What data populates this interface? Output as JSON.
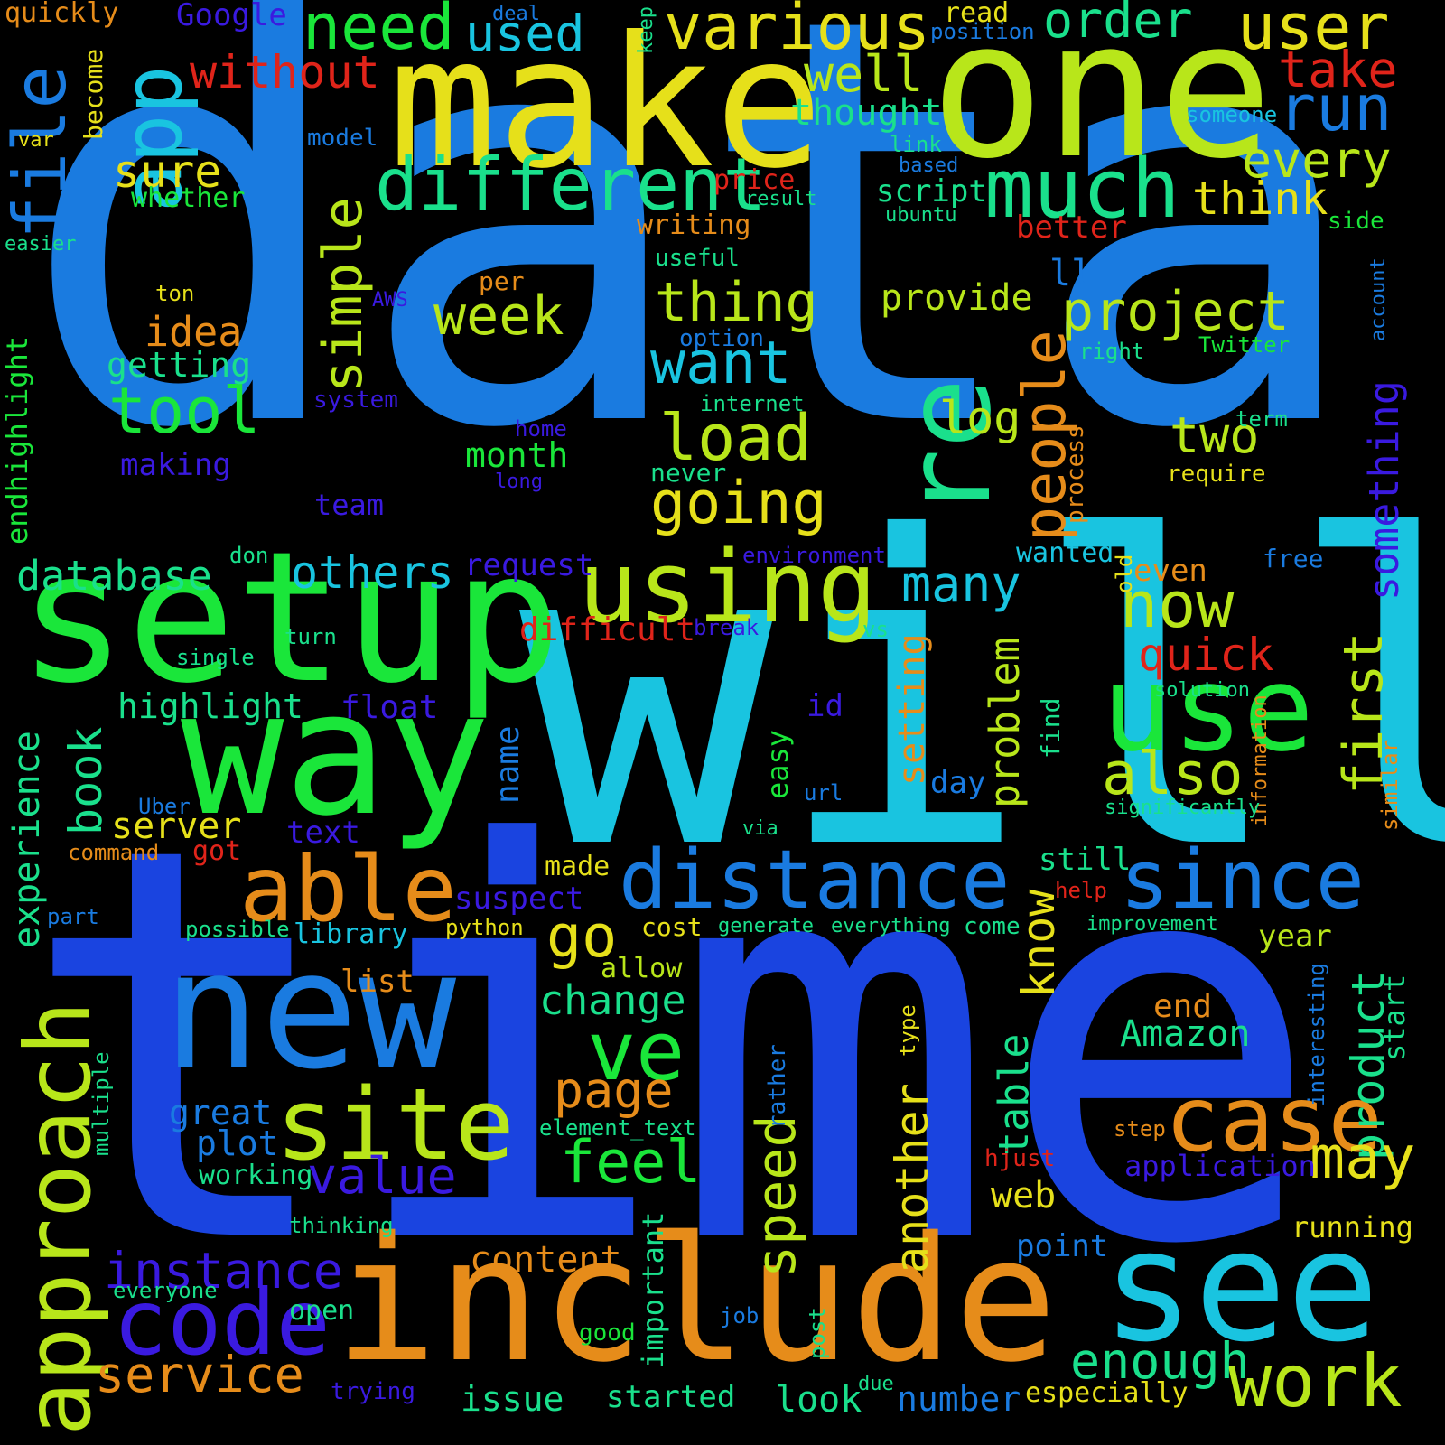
{
  "colors": {
    "background": "#000000",
    "blue": "#1a7be0",
    "royal_blue": "#1a44e0",
    "cyan": "#19c4e0",
    "green": "#1ae63a",
    "lime": "#b8e61a",
    "yellow": "#e6e01a",
    "orange": "#e68c1a",
    "red": "#e0241a",
    "violet": "#3a1ae0",
    "teal": "#1ae08c"
  },
  "words": [
    "data",
    "time",
    "will",
    "one",
    "make",
    "setup",
    "way",
    "include",
    "new",
    "see",
    "use",
    "re",
    "using",
    "different",
    "much",
    "distance",
    "since",
    "site",
    "able",
    "code",
    "approach",
    "case",
    "work",
    "service",
    "various",
    "user",
    "need",
    "run",
    "app",
    "file",
    "tool",
    "week",
    "want",
    "load",
    "going",
    "project",
    "people",
    "simple",
    "ve",
    "go",
    "feel",
    "value",
    "instance",
    "content",
    "enough",
    "speed",
    "now",
    "first",
    "also",
    "know",
    "another",
    "product",
    "may",
    "two",
    "thing",
    "thought",
    "well",
    "every",
    "take",
    "think",
    "sure",
    "without",
    "used",
    "order",
    "read",
    "keep",
    "deal",
    "Google",
    "quickly",
    "become",
    "var",
    "easier",
    "whether",
    "model",
    "price",
    "result",
    "script",
    "link",
    "based",
    "ubuntu",
    "better",
    "side",
    "writing",
    "useful",
    "per",
    "ton",
    "idea",
    "getting",
    "AWS",
    "option",
    "system",
    "internet",
    "home",
    "long",
    "month",
    "making",
    "team",
    "others",
    "database",
    "request",
    "environment",
    "wanted",
    "even",
    "free",
    "many",
    "difficult",
    "break",
    "vs",
    "quick",
    "highlight",
    "float",
    "id",
    "setting",
    "problem",
    "find",
    "solution",
    "information",
    "similar",
    "significantly",
    "easy",
    "url",
    "day",
    "name",
    "book",
    "experience",
    "server",
    "text",
    "Uber",
    "via",
    "command",
    "got",
    "made",
    "suspect",
    "still",
    "help",
    "part",
    "possible",
    "library",
    "python",
    "cost",
    "generate",
    "everything",
    "come",
    "improvement",
    "year",
    "list",
    "allow",
    "change",
    "end",
    "Amazon",
    "table",
    "page",
    "element_text",
    "great",
    "plot",
    "working",
    "multiple",
    "rather",
    "type",
    "step",
    "hjust",
    "application",
    "web",
    "important",
    "thinking",
    "running",
    "point",
    "everyone",
    "open",
    "good",
    "job",
    "post",
    "issue",
    "started",
    "look",
    "number",
    "especially",
    "trying",
    "due",
    "interesting",
    "start",
    "endhighlight",
    "single",
    "turn",
    "don",
    "old",
    "process",
    "require",
    "term",
    "right",
    "Twitter",
    "account",
    "someone",
    "position",
    "log",
    "ll",
    "provide",
    "never",
    "something"
  ]
}
